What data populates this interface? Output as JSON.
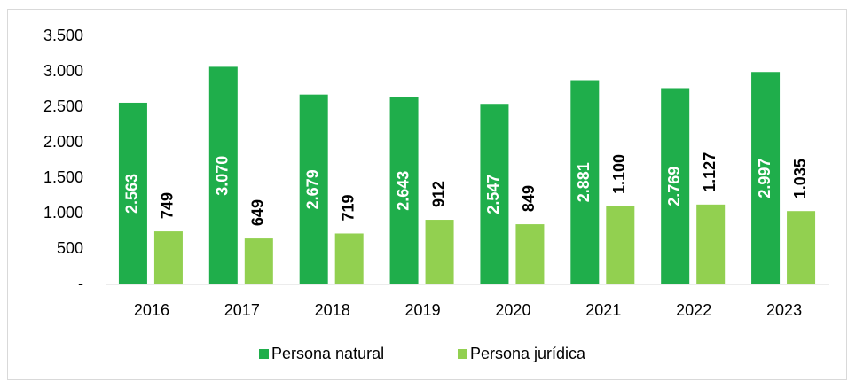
{
  "chart_data": {
    "type": "bar",
    "categories": [
      "2016",
      "2017",
      "2018",
      "2019",
      "2020",
      "2021",
      "2022",
      "2023"
    ],
    "series": [
      {
        "name": "Persona natural",
        "color": "#1fae4b",
        "values": [
          2563,
          3070,
          2679,
          2643,
          2547,
          2881,
          2769,
          2997
        ],
        "value_labels": [
          "2.563",
          "3.070",
          "2.679",
          "2.643",
          "2.547",
          "2.881",
          "2.769",
          "2.997"
        ]
      },
      {
        "name": "Persona jurídica",
        "color": "#92d050",
        "values": [
          749,
          649,
          719,
          912,
          849,
          1100,
          1127,
          1035
        ],
        "value_labels": [
          "749",
          "649",
          "719",
          "912",
          "849",
          "1.100",
          "1.127",
          "1.035"
        ]
      }
    ],
    "ylim": [
      0,
      3500
    ],
    "yticks": [
      {
        "value": 0,
        "label": "-"
      },
      500,
      {
        "value": 1000,
        "label": "1.000"
      },
      {
        "value": 1500,
        "label": "1.500"
      },
      {
        "value": 2000,
        "label": "2.000"
      },
      {
        "value": 2500,
        "label": "2.500"
      },
      {
        "value": 3000,
        "label": "3.000"
      },
      {
        "value": 3500,
        "label": "3.500"
      }
    ],
    "grid": false,
    "legend": "bottom"
  }
}
